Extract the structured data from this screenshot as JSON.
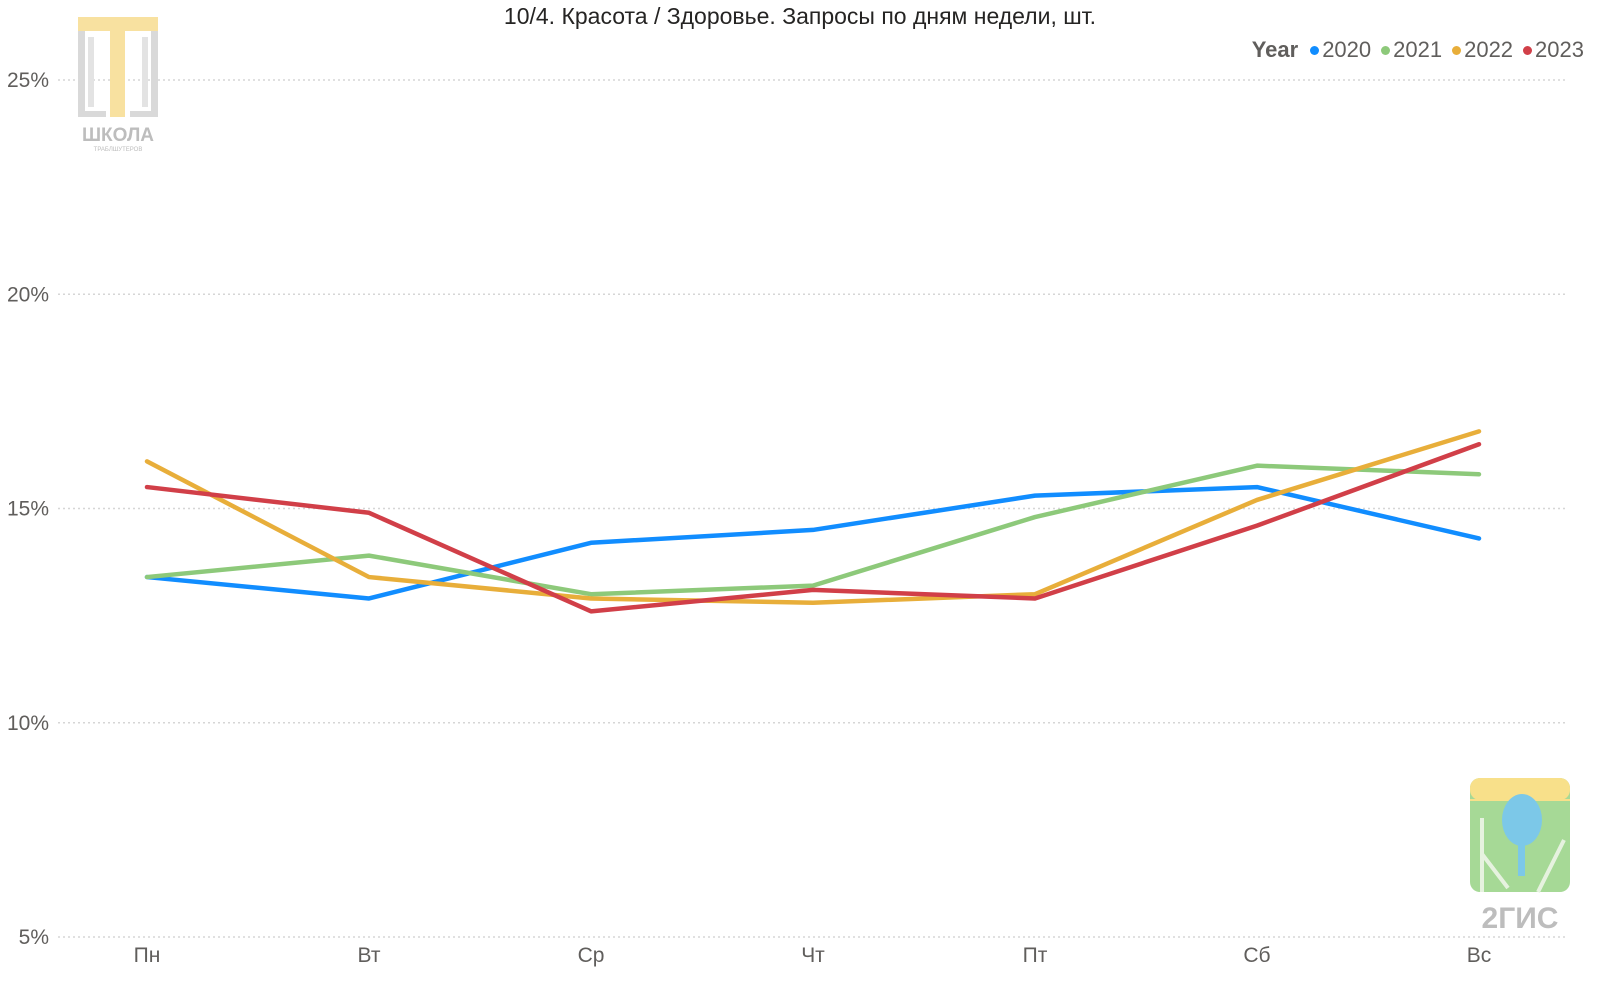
{
  "chart_data": {
    "type": "line",
    "title": "10/4. Красота / Здоровье. Запросы по дням недели, шт.",
    "legend_title": "Year",
    "legend_position": "top-right",
    "categories": [
      "Пн",
      "Вт",
      "Ср",
      "Чт",
      "Пт",
      "Сб",
      "Вс"
    ],
    "ylim": [
      5,
      25
    ],
    "yticks": [
      5,
      10,
      15,
      20,
      25
    ],
    "ytick_labels": [
      "5%",
      "10%",
      "15%",
      "20%",
      "25%"
    ],
    "grid": true,
    "series": [
      {
        "name": "2020",
        "color": "#118DFF",
        "values": [
          13.4,
          12.9,
          14.2,
          14.5,
          15.3,
          15.5,
          14.3
        ]
      },
      {
        "name": "2021",
        "color": "#8DC97A",
        "values": [
          13.4,
          13.9,
          13.0,
          13.2,
          14.8,
          16.0,
          15.8
        ]
      },
      {
        "name": "2022",
        "color": "#E8AE3A",
        "values": [
          16.1,
          13.4,
          12.9,
          12.8,
          13.0,
          15.2,
          16.8
        ]
      },
      {
        "name": "2023",
        "color": "#D13F48",
        "values": [
          15.5,
          14.9,
          12.6,
          13.1,
          12.9,
          14.6,
          16.5
        ]
      }
    ]
  },
  "logos": {
    "school_text": "ШКОЛА",
    "school_subtext": "ТРАБЛШУТЕРОВ",
    "gis_text": "2ГИС"
  }
}
